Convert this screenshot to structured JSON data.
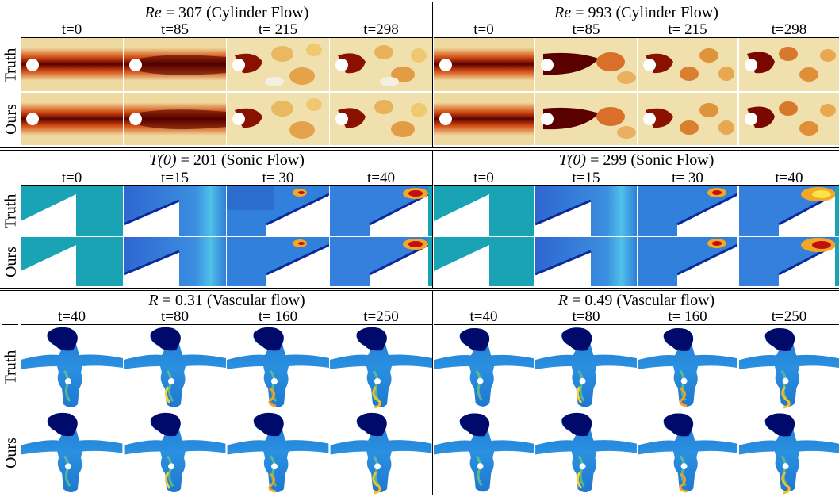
{
  "row_labels": {
    "truth": "Truth",
    "ours": "Ours"
  },
  "sections": [
    {
      "kind": "cylinder",
      "panels": [
        {
          "title_var": "Re",
          "title_value": "307",
          "title_suffix": "(Cylinder Flow)",
          "times": [
            "t=0",
            "t=85",
            "t= 215",
            "t=298"
          ]
        },
        {
          "title_var": "Re",
          "title_value": "993",
          "title_suffix": "(Cylinder Flow)",
          "times": [
            "t=0",
            "t=85",
            "t= 215",
            "t=298"
          ]
        }
      ]
    },
    {
      "kind": "sonic",
      "panels": [
        {
          "title_var": "T(0)",
          "title_value": "201",
          "title_suffix": "(Sonic Flow)",
          "times": [
            "t=0",
            "t=15",
            "t= 30",
            "t=40"
          ]
        },
        {
          "title_var": "T(0)",
          "title_value": "299",
          "title_suffix": "(Sonic Flow)",
          "times": [
            "t=0",
            "t=15",
            "t= 30",
            "t=40"
          ]
        }
      ]
    },
    {
      "kind": "vascular",
      "panels": [
        {
          "title_var": "R",
          "title_value": "0.31",
          "title_suffix": "(Vascular flow)",
          "times": [
            "t=40",
            "t=80",
            "t= 160",
            "t=250"
          ]
        },
        {
          "title_var": "R",
          "title_value": "0.49",
          "title_suffix": "(Vascular flow)",
          "times": [
            "t=40",
            "t=80",
            "t= 160",
            "t=250"
          ]
        }
      ]
    }
  ],
  "colors": {
    "cylinder_background": "#eed9a0",
    "cylinder_wake": "#7a0000",
    "sonic_background": "#1aa3b5",
    "sonic_field": "#2f7fd8",
    "sonic_hot": "#f5a623",
    "vascular_vessel": "#1e78d0",
    "vascular_dark": "#000a6b"
  }
}
